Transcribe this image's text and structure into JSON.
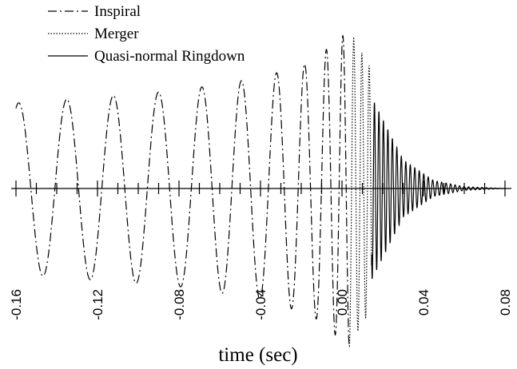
{
  "chart_data": {
    "type": "line",
    "title": "",
    "xlabel": "time (sec)",
    "ylabel": "",
    "xlim": [
      -0.16,
      0.08
    ],
    "ylim": [
      -1.0,
      1.0
    ],
    "x_ticks": [
      -0.16,
      -0.12,
      -0.08,
      -0.04,
      0.0,
      0.04,
      0.08
    ],
    "x_tick_labels": [
      "-0.16",
      "-0.12",
      "-0.08",
      "-0.04",
      "0.00",
      "0.04",
      "0.08"
    ],
    "grid": false,
    "legend_position": "top-left",
    "series": [
      {
        "name": "Inspiral",
        "line_style": "dash-dot",
        "color": "#000000",
        "t_range": [
          -0.16,
          0.0035
        ],
        "envelope_amplitude": [
          [
            -0.16,
            0.54
          ],
          [
            -0.12,
            0.58
          ],
          [
            -0.08,
            0.62
          ],
          [
            -0.04,
            0.7
          ],
          [
            -0.015,
            0.8
          ],
          [
            0.0035,
            1.0
          ]
        ],
        "cycle_period_sec": [
          [
            -0.16,
            0.024
          ],
          [
            -0.08,
            0.0215
          ],
          [
            -0.04,
            0.0175
          ],
          [
            -0.01,
            0.01
          ],
          [
            0.0035,
            0.006
          ]
        ]
      },
      {
        "name": "Merger",
        "line_style": "dotted",
        "color": "#000000",
        "t_range": [
          0.0035,
          0.0145
        ],
        "envelope_amplitude": [
          [
            0.0035,
            1.0
          ],
          [
            0.0145,
            0.75
          ]
        ],
        "cycle_period_sec": [
          [
            0.0035,
            0.0045
          ],
          [
            0.0145,
            0.0032
          ]
        ]
      },
      {
        "name": "Quasi-normal Ringdown",
        "line_style": "solid",
        "color": "#000000",
        "t_range": [
          0.0145,
          0.08
        ],
        "envelope_amplitude": [
          [
            0.0145,
            0.58
          ],
          [
            0.03,
            0.18
          ],
          [
            0.045,
            0.05
          ],
          [
            0.06,
            0.012
          ],
          [
            0.08,
            0.0
          ]
        ],
        "cycle_period_sec": [
          [
            0.0145,
            0.0022
          ],
          [
            0.08,
            0.0022
          ]
        ]
      }
    ]
  }
}
